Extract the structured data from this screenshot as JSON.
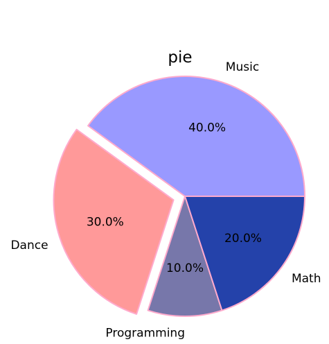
{
  "chart_data": {
    "type": "pie",
    "title": "pie",
    "slices": [
      {
        "label": "Music",
        "value": 40.0,
        "pct_label": "40.0%",
        "color": "#9999ff",
        "explode": 0.0
      },
      {
        "label": "Dance",
        "value": 30.0,
        "pct_label": "30.0%",
        "color": "#ff9999",
        "explode": 0.1
      },
      {
        "label": "Programming",
        "value": 10.0,
        "pct_label": "10.0%",
        "color": "#7777aa",
        "explode": 0.0
      },
      {
        "label": "Math",
        "value": 20.0,
        "pct_label": "20.0%",
        "color": "#2442aa",
        "explode": 0.0
      }
    ],
    "edge_color": "#ffaacc"
  }
}
